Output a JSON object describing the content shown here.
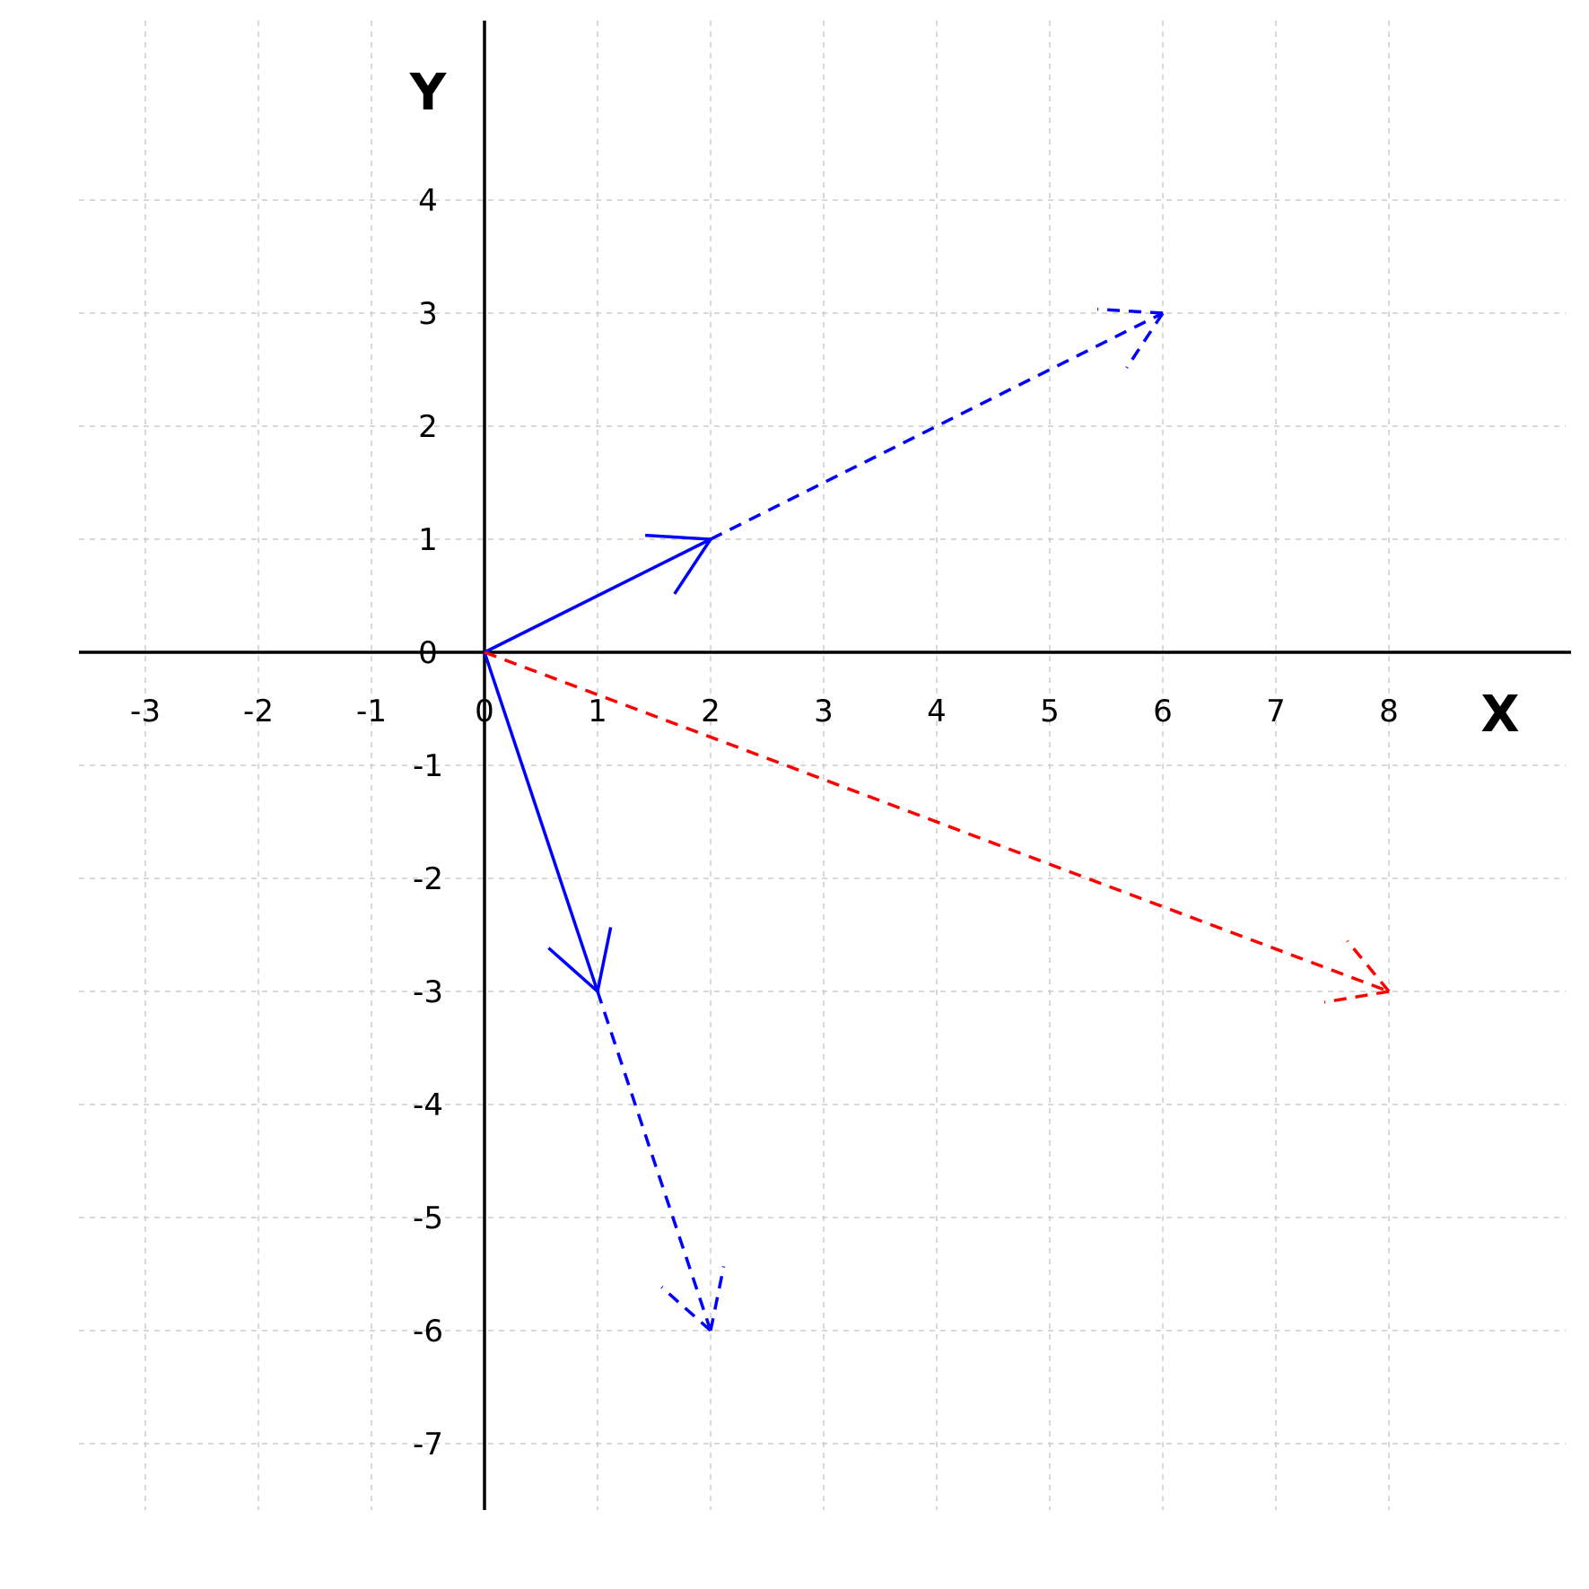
{
  "chart_data": {
    "type": "vector",
    "xlabel": "X",
    "ylabel": "Y",
    "xlim": [
      -3.6,
      9.6
    ],
    "ylim": [
      -7.6,
      5.6
    ],
    "grid": true,
    "x_ticks": [
      "-3",
      "-2",
      "-1",
      "0",
      "1",
      "2",
      "3",
      "4",
      "5",
      "6",
      "7",
      "8"
    ],
    "y_ticks": [
      "4",
      "3",
      "2",
      "1",
      "0",
      "-1",
      "-2",
      "-3",
      "-4",
      "-5",
      "-6",
      "-7"
    ],
    "vectors": [
      {
        "from": [
          0,
          0
        ],
        "to": [
          2,
          1
        ],
        "color": "#0000ff",
        "style": "solid"
      },
      {
        "from": [
          0,
          0
        ],
        "to": [
          1,
          -3
        ],
        "color": "#0000ff",
        "style": "solid"
      },
      {
        "from": [
          2,
          1
        ],
        "to": [
          6,
          3
        ],
        "color": "#0000ff",
        "style": "dashed"
      },
      {
        "from": [
          1,
          -3
        ],
        "to": [
          2,
          -6
        ],
        "color": "#0000ff",
        "style": "dashed"
      },
      {
        "from": [
          0,
          0
        ],
        "to": [
          8,
          -3
        ],
        "color": "#ff0000",
        "style": "dashed"
      }
    ]
  }
}
